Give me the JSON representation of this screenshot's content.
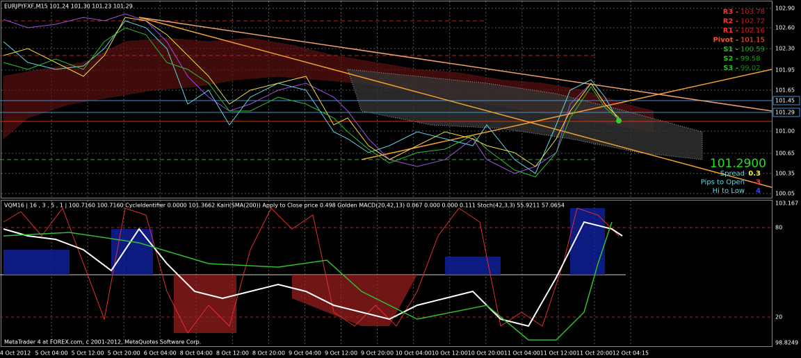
{
  "chart_window": {
    "header": "EURJPYFXF,M15  101.24 101.30 101.23 101.29",
    "pivots": [
      {
        "label": "R3 -",
        "value": "103.78"
      },
      {
        "label": "R2 -",
        "value": "102.72"
      },
      {
        "label": "R1 -",
        "value": "102.16"
      },
      {
        "label": "Pivot -",
        "value": "101.15"
      },
      {
        "label": "S1 -",
        "value": "100.59"
      },
      {
        "label": "S2 -",
        "value": "99.58"
      },
      {
        "label": "S3 -",
        "value": "99.02"
      }
    ],
    "price_axis": [
      "102.90",
      "102.60",
      "102.30",
      "101.95",
      "101.65",
      "101.45",
      "101.29",
      "101.00",
      "100.65",
      "100.35",
      "100.05"
    ],
    "info_panel": {
      "price": "101.2900",
      "rows": [
        {
          "label": "Spread",
          "value": "0.3"
        },
        {
          "label": "Pips to Open",
          "value": "-3"
        },
        {
          "label": "Hi to Low",
          "value": "4"
        }
      ]
    },
    "indicator_header": "VQM16 | 16 , 3 , 5 , 1 | 100.7160 100.7160  CycleIdentifier 0.0000 101.3662  Kairi(SMA(200)) Apply to Close price 0.498  Golden MACD(20,42,13) 0.067 0.000 0.000 0.111  Stoch(42,3,3) 55.9211 57.0654",
    "indicator_axis": [
      "103.167",
      "80",
      "20",
      "98.8249"
    ],
    "time_axis": [
      "4 Oct 2012",
      "5 Oct 04:00",
      "5 Oct 12:00",
      "5 Oct 20:00",
      "6 Oct 04:00",
      "8 Oct 04:00",
      "8 Oct 12:00",
      "8 Oct 20:00",
      "9 Oct 04:00",
      "9 Oct 12:00",
      "9 Oct 20:00",
      "10 Oct 04:00",
      "10 Oct 12:00",
      "10 Oct 20:00",
      "11 Oct 04:00",
      "11 Oct 12:00",
      "11 Oct 20:00",
      "12 Oct 04:15"
    ],
    "footer": "MetaTrader 4 at FOREX.com, c 2001-2012, MetaQuotes Software Corp."
  }
}
